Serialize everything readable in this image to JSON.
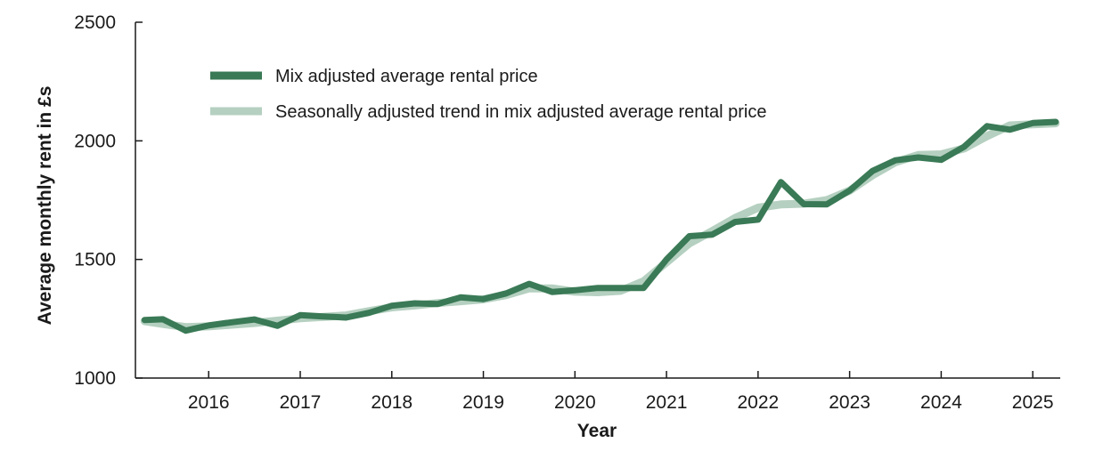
{
  "chart_data": {
    "type": "line",
    "title": "",
    "xlabel": "Year",
    "ylabel": "Average monthly rent in £s",
    "ylim": [
      1000,
      2500
    ],
    "yticks": [
      "1000",
      "1500",
      "2000",
      "2500"
    ],
    "xlim": [
      2015.2,
      2025.3
    ],
    "xticks": [
      "2016",
      "2017",
      "2018",
      "2019",
      "2020",
      "2021",
      "2022",
      "2023",
      "2024",
      "2025"
    ],
    "grid": false,
    "legend_position": "top-left",
    "series": [
      {
        "name": "Mix adjusted average rental price",
        "color": "#3a7a56",
        "x": [
          2015.3,
          2015.5,
          2015.75,
          2016.0,
          2016.25,
          2016.5,
          2016.75,
          2017.0,
          2017.25,
          2017.5,
          2017.75,
          2018.0,
          2018.25,
          2018.5,
          2018.75,
          2019.0,
          2019.25,
          2019.5,
          2019.75,
          2020.0,
          2020.25,
          2020.5,
          2020.75,
          2021.0,
          2021.25,
          2021.5,
          2021.75,
          2022.0,
          2022.25,
          2022.5,
          2022.75,
          2023.0,
          2023.25,
          2023.5,
          2023.75,
          2024.0,
          2024.25,
          2024.5,
          2024.75,
          2025.0,
          2025.25
        ],
        "values": [
          1245,
          1248,
          1200,
          1222,
          1235,
          1247,
          1220,
          1265,
          1260,
          1255,
          1275,
          1305,
          1315,
          1312,
          1340,
          1333,
          1357,
          1397,
          1363,
          1370,
          1380,
          1380,
          1380,
          1500,
          1598,
          1605,
          1658,
          1668,
          1826,
          1733,
          1732,
          1790,
          1873,
          1918,
          1930,
          1920,
          1975,
          2062,
          2047,
          2075,
          2080
        ]
      },
      {
        "name": "Seasonally adjusted trend in mix adjusted average rental price",
        "color": "#b5d0c0",
        "x": [
          2015.3,
          2015.5,
          2015.75,
          2016.0,
          2016.25,
          2016.5,
          2016.75,
          2017.0,
          2017.25,
          2017.5,
          2017.75,
          2018.0,
          2018.25,
          2018.5,
          2018.75,
          2019.0,
          2019.25,
          2019.5,
          2019.75,
          2020.0,
          2020.25,
          2020.5,
          2020.75,
          2021.0,
          2021.25,
          2021.5,
          2021.75,
          2022.0,
          2022.25,
          2022.5,
          2022.75,
          2023.0,
          2023.25,
          2023.5,
          2023.75,
          2024.0,
          2024.25,
          2024.5,
          2024.75,
          2025.0,
          2025.25
        ],
        "values": [
          1240,
          1228,
          1215,
          1218,
          1225,
          1232,
          1242,
          1252,
          1258,
          1264,
          1282,
          1298,
          1306,
          1316,
          1324,
          1332,
          1350,
          1378,
          1378,
          1364,
          1362,
          1368,
          1408,
          1488,
          1568,
          1620,
          1675,
          1718,
          1732,
          1735,
          1750,
          1790,
          1855,
          1910,
          1940,
          1943,
          1968,
          2020,
          2065,
          2070,
          2074
        ]
      }
    ]
  }
}
